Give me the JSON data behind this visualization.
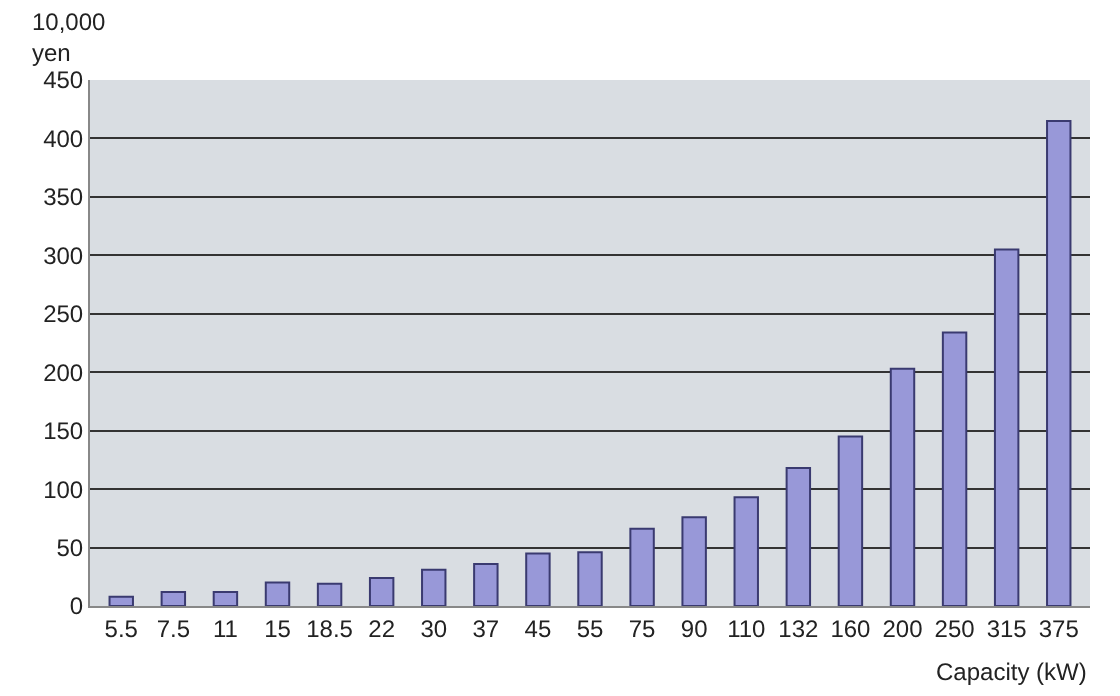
{
  "chart_data": {
    "type": "bar",
    "ylabel": "10,000\nyen",
    "xlabel": "Capacity (kW)",
    "categories": [
      "5.5",
      "7.5",
      "11",
      "15",
      "18.5",
      "22",
      "30",
      "37",
      "45",
      "55",
      "75",
      "90",
      "110",
      "132",
      "160",
      "200",
      "250",
      "315",
      "375"
    ],
    "values": [
      8,
      12,
      12,
      20,
      19,
      24,
      31,
      36,
      45,
      46,
      66,
      76,
      93,
      118,
      145,
      203,
      234,
      305,
      415
    ],
    "color": "#9898d8",
    "ylim": [
      0,
      450
    ],
    "yticks": [
      0,
      50,
      100,
      150,
      200,
      250,
      300,
      350,
      400,
      450
    ],
    "grid": "y"
  }
}
